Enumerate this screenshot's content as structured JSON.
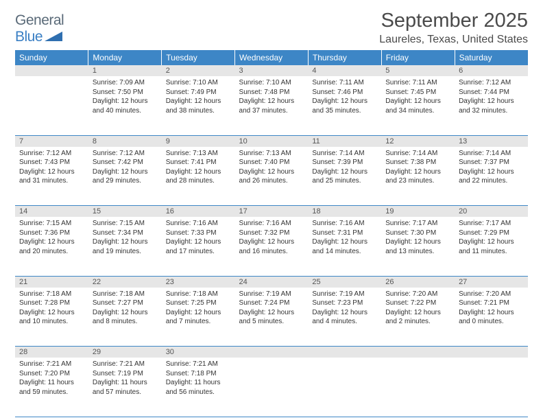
{
  "logo": {
    "text_general": "General",
    "text_blue": "Blue"
  },
  "title": "September 2025",
  "location": "Laureles, Texas, United States",
  "style": {
    "header_bg": "#3d86c6",
    "header_text": "#ffffff",
    "daynum_bg": "#e6e6e6",
    "daynum_text": "#555555",
    "border": "#3d86c6",
    "body_text": "#333333",
    "page_bg": "#ffffff",
    "logo_gray": "#5a6a78",
    "logo_blue": "#3a7fc4",
    "font_title": 29,
    "font_location": 16,
    "font_dayhdr": 12,
    "font_daynum": 11,
    "font_body": 10
  },
  "weekdays": [
    "Sunday",
    "Monday",
    "Tuesday",
    "Wednesday",
    "Thursday",
    "Friday",
    "Saturday"
  ],
  "weeks": [
    {
      "nums": [
        "",
        "1",
        "2",
        "3",
        "4",
        "5",
        "6"
      ],
      "cells": [
        {},
        {
          "sunrise": "Sunrise: 7:09 AM",
          "sunset": "Sunset: 7:50 PM",
          "day1": "Daylight: 12 hours",
          "day2": "and 40 minutes."
        },
        {
          "sunrise": "Sunrise: 7:10 AM",
          "sunset": "Sunset: 7:49 PM",
          "day1": "Daylight: 12 hours",
          "day2": "and 38 minutes."
        },
        {
          "sunrise": "Sunrise: 7:10 AM",
          "sunset": "Sunset: 7:48 PM",
          "day1": "Daylight: 12 hours",
          "day2": "and 37 minutes."
        },
        {
          "sunrise": "Sunrise: 7:11 AM",
          "sunset": "Sunset: 7:46 PM",
          "day1": "Daylight: 12 hours",
          "day2": "and 35 minutes."
        },
        {
          "sunrise": "Sunrise: 7:11 AM",
          "sunset": "Sunset: 7:45 PM",
          "day1": "Daylight: 12 hours",
          "day2": "and 34 minutes."
        },
        {
          "sunrise": "Sunrise: 7:12 AM",
          "sunset": "Sunset: 7:44 PM",
          "day1": "Daylight: 12 hours",
          "day2": "and 32 minutes."
        }
      ]
    },
    {
      "nums": [
        "7",
        "8",
        "9",
        "10",
        "11",
        "12",
        "13"
      ],
      "cells": [
        {
          "sunrise": "Sunrise: 7:12 AM",
          "sunset": "Sunset: 7:43 PM",
          "day1": "Daylight: 12 hours",
          "day2": "and 31 minutes."
        },
        {
          "sunrise": "Sunrise: 7:12 AM",
          "sunset": "Sunset: 7:42 PM",
          "day1": "Daylight: 12 hours",
          "day2": "and 29 minutes."
        },
        {
          "sunrise": "Sunrise: 7:13 AM",
          "sunset": "Sunset: 7:41 PM",
          "day1": "Daylight: 12 hours",
          "day2": "and 28 minutes."
        },
        {
          "sunrise": "Sunrise: 7:13 AM",
          "sunset": "Sunset: 7:40 PM",
          "day1": "Daylight: 12 hours",
          "day2": "and 26 minutes."
        },
        {
          "sunrise": "Sunrise: 7:14 AM",
          "sunset": "Sunset: 7:39 PM",
          "day1": "Daylight: 12 hours",
          "day2": "and 25 minutes."
        },
        {
          "sunrise": "Sunrise: 7:14 AM",
          "sunset": "Sunset: 7:38 PM",
          "day1": "Daylight: 12 hours",
          "day2": "and 23 minutes."
        },
        {
          "sunrise": "Sunrise: 7:14 AM",
          "sunset": "Sunset: 7:37 PM",
          "day1": "Daylight: 12 hours",
          "day2": "and 22 minutes."
        }
      ]
    },
    {
      "nums": [
        "14",
        "15",
        "16",
        "17",
        "18",
        "19",
        "20"
      ],
      "cells": [
        {
          "sunrise": "Sunrise: 7:15 AM",
          "sunset": "Sunset: 7:36 PM",
          "day1": "Daylight: 12 hours",
          "day2": "and 20 minutes."
        },
        {
          "sunrise": "Sunrise: 7:15 AM",
          "sunset": "Sunset: 7:34 PM",
          "day1": "Daylight: 12 hours",
          "day2": "and 19 minutes."
        },
        {
          "sunrise": "Sunrise: 7:16 AM",
          "sunset": "Sunset: 7:33 PM",
          "day1": "Daylight: 12 hours",
          "day2": "and 17 minutes."
        },
        {
          "sunrise": "Sunrise: 7:16 AM",
          "sunset": "Sunset: 7:32 PM",
          "day1": "Daylight: 12 hours",
          "day2": "and 16 minutes."
        },
        {
          "sunrise": "Sunrise: 7:16 AM",
          "sunset": "Sunset: 7:31 PM",
          "day1": "Daylight: 12 hours",
          "day2": "and 14 minutes."
        },
        {
          "sunrise": "Sunrise: 7:17 AM",
          "sunset": "Sunset: 7:30 PM",
          "day1": "Daylight: 12 hours",
          "day2": "and 13 minutes."
        },
        {
          "sunrise": "Sunrise: 7:17 AM",
          "sunset": "Sunset: 7:29 PM",
          "day1": "Daylight: 12 hours",
          "day2": "and 11 minutes."
        }
      ]
    },
    {
      "nums": [
        "21",
        "22",
        "23",
        "24",
        "25",
        "26",
        "27"
      ],
      "cells": [
        {
          "sunrise": "Sunrise: 7:18 AM",
          "sunset": "Sunset: 7:28 PM",
          "day1": "Daylight: 12 hours",
          "day2": "and 10 minutes."
        },
        {
          "sunrise": "Sunrise: 7:18 AM",
          "sunset": "Sunset: 7:27 PM",
          "day1": "Daylight: 12 hours",
          "day2": "and 8 minutes."
        },
        {
          "sunrise": "Sunrise: 7:18 AM",
          "sunset": "Sunset: 7:25 PM",
          "day1": "Daylight: 12 hours",
          "day2": "and 7 minutes."
        },
        {
          "sunrise": "Sunrise: 7:19 AM",
          "sunset": "Sunset: 7:24 PM",
          "day1": "Daylight: 12 hours",
          "day2": "and 5 minutes."
        },
        {
          "sunrise": "Sunrise: 7:19 AM",
          "sunset": "Sunset: 7:23 PM",
          "day1": "Daylight: 12 hours",
          "day2": "and 4 minutes."
        },
        {
          "sunrise": "Sunrise: 7:20 AM",
          "sunset": "Sunset: 7:22 PM",
          "day1": "Daylight: 12 hours",
          "day2": "and 2 minutes."
        },
        {
          "sunrise": "Sunrise: 7:20 AM",
          "sunset": "Sunset: 7:21 PM",
          "day1": "Daylight: 12 hours",
          "day2": "and 0 minutes."
        }
      ]
    },
    {
      "nums": [
        "28",
        "29",
        "30",
        "",
        "",
        "",
        ""
      ],
      "cells": [
        {
          "sunrise": "Sunrise: 7:21 AM",
          "sunset": "Sunset: 7:20 PM",
          "day1": "Daylight: 11 hours",
          "day2": "and 59 minutes."
        },
        {
          "sunrise": "Sunrise: 7:21 AM",
          "sunset": "Sunset: 7:19 PM",
          "day1": "Daylight: 11 hours",
          "day2": "and 57 minutes."
        },
        {
          "sunrise": "Sunrise: 7:21 AM",
          "sunset": "Sunset: 7:18 PM",
          "day1": "Daylight: 11 hours",
          "day2": "and 56 minutes."
        },
        {},
        {},
        {},
        {}
      ]
    }
  ]
}
